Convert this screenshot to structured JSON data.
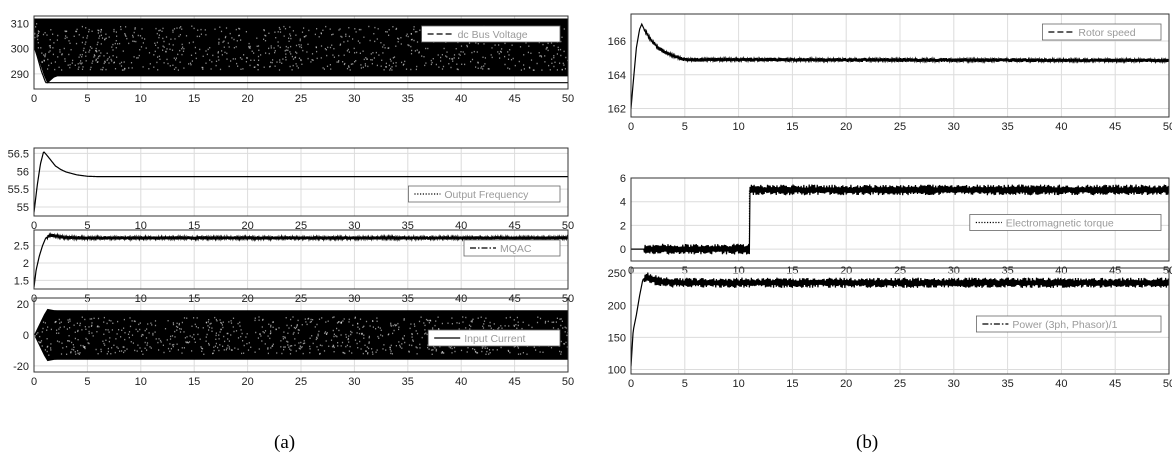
{
  "captions": {
    "a": "(a)",
    "b": "(b)"
  },
  "chart_data": [
    {
      "type": "line",
      "panel": "a",
      "legend": "dc Bus Voltage",
      "legend_style": "dash",
      "legend_loc": "top-right",
      "xlim": [
        0,
        50
      ],
      "ylim": [
        284,
        313
      ],
      "xticks": [
        0,
        5,
        10,
        15,
        20,
        25,
        30,
        35,
        40,
        45,
        50
      ],
      "yticks": [
        290,
        300,
        310
      ],
      "band": {
        "upper": [
          [
            0,
            312
          ],
          [
            50,
            312
          ]
        ],
        "lower": [
          [
            0,
            301
          ],
          [
            1.2,
            286
          ],
          [
            2,
            289
          ],
          [
            2.5,
            289
          ],
          [
            50,
            289
          ]
        ]
      },
      "line": [
        [
          0,
          301
        ],
        [
          0.3,
          297
        ],
        [
          0.7,
          291
        ],
        [
          1.1,
          286.5
        ]
      ],
      "grid": true
    },
    {
      "type": "line",
      "panel": "a",
      "legend": "Output Frequency",
      "legend_style": "dot",
      "legend_loc": "bottom-right",
      "xlim": [
        0,
        50
      ],
      "ylim": [
        54.75,
        56.65
      ],
      "xticks": [
        0,
        5,
        10,
        15,
        20,
        25,
        30,
        35,
        40,
        45,
        50
      ],
      "yticks": [
        55,
        55.5,
        56,
        56.5
      ],
      "line": [
        [
          0,
          54.85
        ],
        [
          0.3,
          55.6
        ],
        [
          0.6,
          56.2
        ],
        [
          0.9,
          56.55
        ],
        [
          1.2,
          56.45
        ],
        [
          1.6,
          56.3
        ],
        [
          2,
          56.15
        ],
        [
          2.5,
          56.05
        ],
        [
          3,
          55.98
        ],
        [
          4,
          55.9
        ],
        [
          5,
          55.86
        ],
        [
          6,
          55.85
        ],
        [
          50,
          55.85
        ]
      ],
      "grid": true
    },
    {
      "type": "line",
      "panel": "a",
      "legend": "MQAC",
      "legend_style": "dashdot",
      "legend_loc": "top-right",
      "xlim": [
        0,
        50
      ],
      "ylim": [
        1.25,
        2.95
      ],
      "xticks": [
        0,
        5,
        10,
        15,
        20,
        25,
        30,
        35,
        40,
        45,
        50
      ],
      "yticks": [
        1.5,
        2,
        2.5
      ],
      "line": [
        [
          0,
          1.3
        ],
        [
          0.2,
          1.8
        ],
        [
          0.5,
          2.2
        ],
        [
          0.8,
          2.5
        ],
        [
          1.1,
          2.72
        ],
        [
          1.5,
          2.8
        ],
        [
          2,
          2.78
        ],
        [
          3,
          2.73
        ],
        [
          5,
          2.72
        ],
        [
          50,
          2.72
        ]
      ],
      "noise": 0.05,
      "grid": true
    },
    {
      "type": "line",
      "panel": "a",
      "legend": "Input Current",
      "legend_style": "solid",
      "legend_loc": "right",
      "xlim": [
        0,
        50
      ],
      "ylim": [
        -24,
        24
      ],
      "xticks": [
        0,
        5,
        10,
        15,
        20,
        25,
        30,
        35,
        40,
        45,
        50
      ],
      "yticks": [
        -20,
        0,
        20
      ],
      "band": {
        "upper": [
          [
            0,
            0
          ],
          [
            1.2,
            17
          ],
          [
            2,
            16
          ],
          [
            50,
            16
          ]
        ],
        "lower": [
          [
            0,
            0
          ],
          [
            1.2,
            -17
          ],
          [
            2,
            -16
          ],
          [
            50,
            -16
          ]
        ]
      },
      "grid": true
    },
    {
      "type": "line",
      "panel": "b",
      "legend": "Rotor speed",
      "legend_style": "dash",
      "legend_loc": "top-right",
      "xlim": [
        0,
        50
      ],
      "ylim": [
        161.5,
        167.6
      ],
      "xticks": [
        0,
        5,
        10,
        15,
        20,
        25,
        30,
        35,
        40,
        45,
        50
      ],
      "yticks": [
        162,
        164,
        166
      ],
      "line": [
        [
          0,
          162
        ],
        [
          0.2,
          163.5
        ],
        [
          0.5,
          165.6
        ],
        [
          0.8,
          166.7
        ],
        [
          1,
          167
        ],
        [
          1.3,
          166.6
        ],
        [
          1.8,
          166.1
        ],
        [
          2.5,
          165.6
        ],
        [
          3,
          165.4
        ],
        [
          4,
          165.1
        ],
        [
          5,
          164.9
        ],
        [
          50,
          164.85
        ]
      ],
      "noise": 0.12,
      "grid": true
    },
    {
      "type": "line",
      "panel": "b",
      "legend": "Electromagnetic torque",
      "legend_style": "dot",
      "legend_loc": "right",
      "xlim": [
        0,
        50
      ],
      "ylim": [
        -1,
        6
      ],
      "xticks": [
        0,
        5,
        10,
        15,
        20,
        25,
        30,
        35,
        40,
        45,
        50
      ],
      "yticks": [
        0,
        2,
        4,
        6
      ],
      "line": [
        [
          0,
          0
        ],
        [
          11,
          0
        ],
        [
          11,
          5
        ],
        [
          50,
          5
        ]
      ],
      "noise": 0.45,
      "grid": true
    },
    {
      "type": "line",
      "panel": "b",
      "legend": "Power (3ph, Phasor)/1",
      "legend_style": "dashdot",
      "legend_loc": "right",
      "xlim": [
        0,
        50
      ],
      "ylim": [
        93,
        258
      ],
      "xticks": [
        0,
        5,
        10,
        15,
        20,
        25,
        30,
        35,
        40,
        45,
        50
      ],
      "yticks": [
        100,
        150,
        200,
        250
      ],
      "line": [
        [
          0,
          105
        ],
        [
          0.2,
          160
        ],
        [
          0.5,
          185
        ],
        [
          0.8,
          215
        ],
        [
          1.1,
          240
        ],
        [
          1.5,
          245
        ],
        [
          2,
          240
        ],
        [
          3,
          236
        ],
        [
          5,
          235
        ],
        [
          50,
          235
        ]
      ],
      "noise": 8,
      "grid": true
    }
  ]
}
